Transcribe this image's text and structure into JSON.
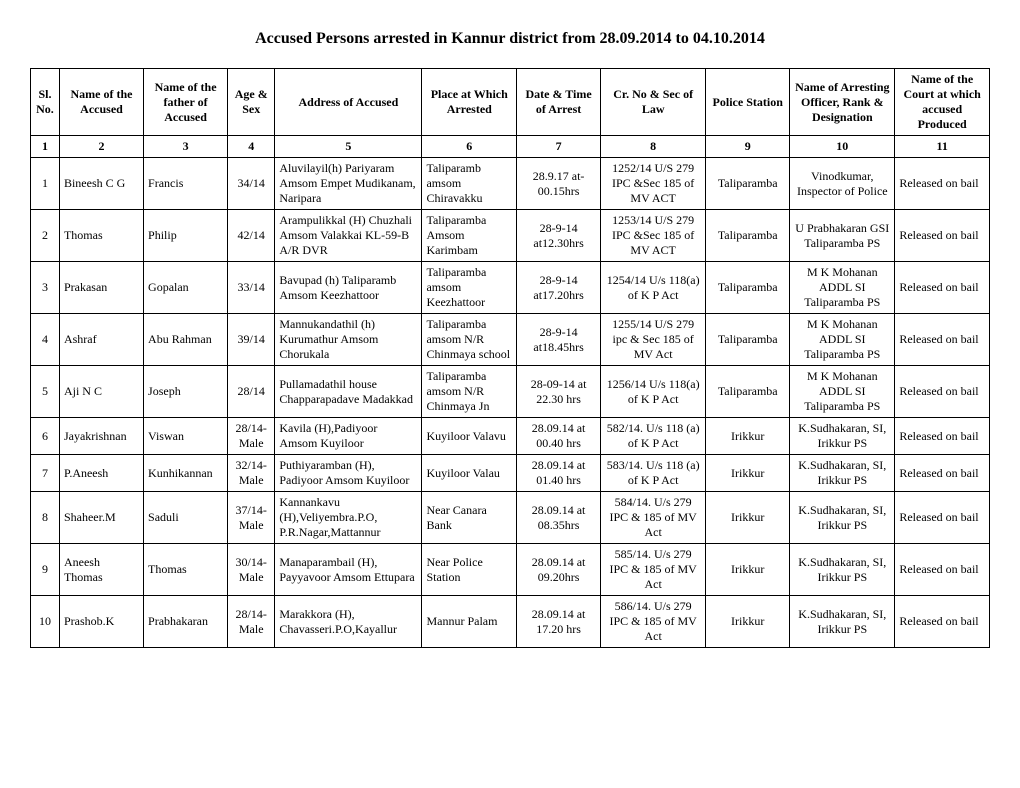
{
  "title": "Accused Persons arrested in Kannur district from 28.09.2014 to 04.10.2014",
  "headers": {
    "sl": "Sl. No.",
    "name": "Name of the Accused",
    "father": "Name of the father of Accused",
    "age": "Age & Sex",
    "address": "Address of Accused",
    "place": "Place at Which Arrested",
    "date": "Date & Time of Arrest",
    "crno": "Cr. No & Sec of Law",
    "station": "Police Station",
    "officer": "Name of Arresting Officer, Rank & Designation",
    "court": "Name of the Court at which accused Produced"
  },
  "colnums": [
    "1",
    "2",
    "3",
    "4",
    "5",
    "6",
    "7",
    "8",
    "9",
    "10",
    "11"
  ],
  "rows": [
    {
      "sl": "1",
      "name": "Bineesh C G",
      "father": "Francis",
      "age": "34/14",
      "address": "Aluvilayil(h)   Pariyaram Amsom Empet Mudikanam, Naripara",
      "place": "Taliparamb amsom Chiravakku",
      "date": "28.9.17 at-00.15hrs",
      "crno": "1252/14 U/S 279 IPC &Sec 185 of MV ACT",
      "station": "Taliparamba",
      "officer": "Vinodkumar, Inspector of Police",
      "court": "Released on bail"
    },
    {
      "sl": "2",
      "name": "Thomas",
      "father": "Philip",
      "age": "42/14",
      "address": "Arampulikkal (H) Chuzhali Amsom Valakkai KL-59-B A/R DVR",
      "place": "Taliparamba Amsom Karimbam",
      "date": "28-9-14 at12.30hrs",
      "crno": "1253/14 U/S 279 IPC &Sec 185 of MV ACT",
      "station": "Taliparamba",
      "officer": "U Prabhakaran GSI Taliparamba PS",
      "court": "Released on bail"
    },
    {
      "sl": "3",
      "name": "Prakasan",
      "father": "Gopalan",
      "age": "33/14",
      "address": " Bavupad (h) Taliparamb Amsom Keezhattoor",
      "place": "Taliparamba amsom Keezhattoor",
      "date": "28-9-14 at17.20hrs",
      "crno": "1254/14 U/s 118(a) of K P Act",
      "station": "Taliparamba",
      "officer": "M K Mohanan ADDL SI Taliparamba PS",
      "court": "Released on bail"
    },
    {
      "sl": "4",
      "name": "Ashraf",
      "father": "Abu Rahman",
      "age": "39/14",
      "address": "Mannukandathil (h) Kurumathur Amsom Chorukala",
      "place": "Taliparamba amsom N/R Chinmaya school",
      "date": "28-9-14 at18.45hrs",
      "crno": "1255/14  U/S 279 ipc & Sec 185 of MV Act",
      "station": "Taliparamba",
      "officer": "M K Mohanan ADDL SI Taliparamba PS",
      "court": "Released on bail"
    },
    {
      "sl": "5",
      "name": "Aji N C",
      "father": "Joseph",
      "age": "28/14",
      "address": "Pullamadathil house Chapparapadave Madakkad",
      "place": "Taliparamba amsom N/R Chinmaya Jn",
      "date": "28-09-14 at 22.30 hrs",
      "crno": "1256/14 U/s 118(a) of K P Act",
      "station": "Taliparamba",
      "officer": "M K Mohanan ADDL SI Taliparamba PS",
      "court": "Released on bail"
    },
    {
      "sl": "6",
      "name": "Jayakrishnan",
      "father": "Viswan",
      "age": "28/14-Male",
      "address": "Kavila (H),Padiyoor Amsom Kuyiloor",
      "place": "Kuyiloor Valavu",
      "date": "28.09.14 at 00.40 hrs",
      "crno": "582/14. U/s 118 (a) of K P Act",
      "station": "Irikkur",
      "officer": "K.Sudhakaran, SI, Irikkur PS",
      "court": "Released on bail"
    },
    {
      "sl": "7",
      "name": "P.Aneesh",
      "father": "Kunhikannan",
      "age": "32/14-Male",
      "address": "Puthiyaramban (H), Padiyoor Amsom Kuyiloor",
      "place": "Kuyiloor Valau",
      "date": "28.09.14 at 01.40 hrs",
      "crno": "583/14. U/s 118 (a) of K P Act",
      "station": "Irikkur",
      "officer": "K.Sudhakaran, SI, Irikkur PS",
      "court": "Released on bail"
    },
    {
      "sl": "8",
      "name": "Shaheer.M",
      "father": "Saduli",
      "age": "37/14-Male",
      "address": "Kannankavu (H),Veliyembra.P.O, P.R.Nagar,Mattannur",
      "place": "Near Canara Bank",
      "date": "28.09.14 at 08.35hrs",
      "crno": "584/14. U/s 279 IPC & 185 of MV Act",
      "station": "Irikkur",
      "officer": "K.Sudhakaran, SI, Irikkur PS",
      "court": "Released on bail"
    },
    {
      "sl": "9",
      "name": "Aneesh Thomas",
      "father": "Thomas",
      "age": "30/14-Male",
      "address": "Manaparambail (H), Payyavoor Amsom Ettupara",
      "place": "Near Police Station",
      "date": "28.09.14 at 09.20hrs",
      "crno": "585/14. U/s 279 IPC & 185 of MV Act",
      "station": "Irikkur",
      "officer": "K.Sudhakaran, SI, Irikkur PS",
      "court": "Released on bail"
    },
    {
      "sl": "10",
      "name": "Prashob.K",
      "father": "Prabhakaran",
      "age": "28/14-Male",
      "address": "Marakkora (H), Chavasseri.P.O,Kayallur",
      "place": "Mannur Palam",
      "date": "28.09.14 at 17.20 hrs",
      "crno": "586/14. U/s 279 IPC & 185 of MV Act",
      "station": "Irikkur",
      "officer": "K.Sudhakaran, SI, Irikkur PS",
      "court": "Released on bail"
    }
  ]
}
